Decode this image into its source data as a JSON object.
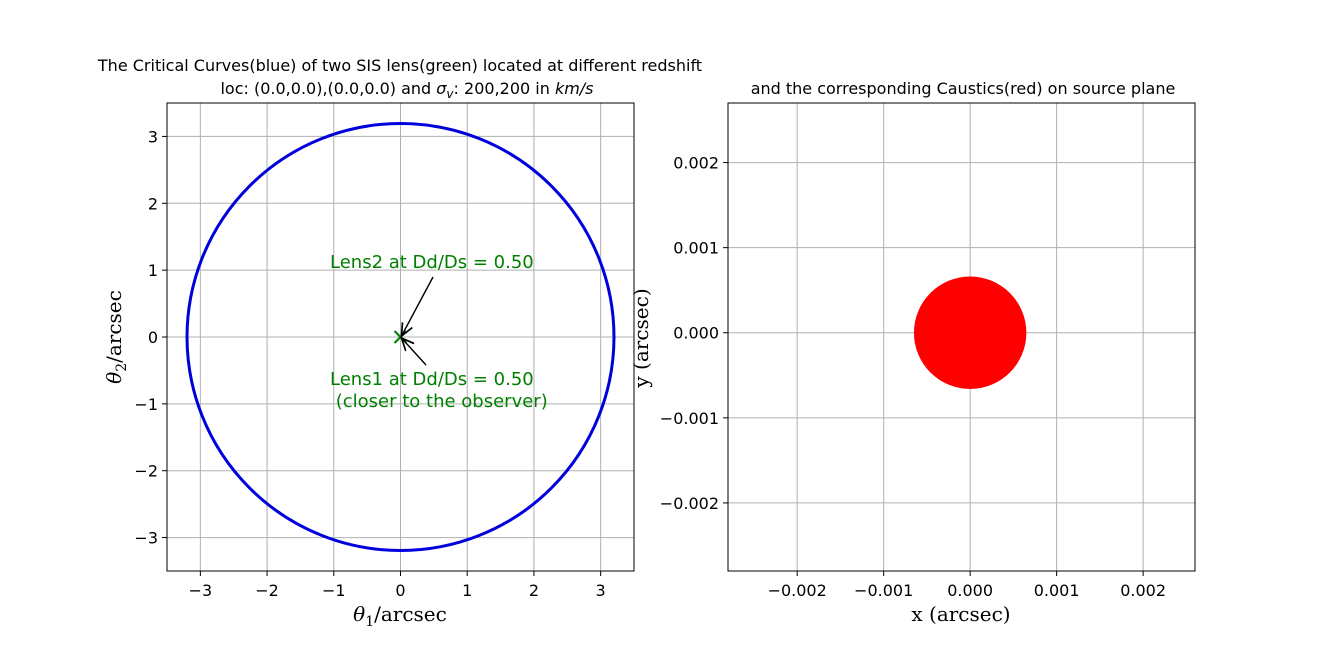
{
  "chart_data": [
    {
      "type": "line",
      "title_line1": "The Critical Curves(blue) of two SIS lens(green) located at different redshift",
      "title_line2_prefix": "loc: (0.0,0.0),(0.0,0.0) and ",
      "title_line2_sigma": "σ",
      "title_line2_sub": "v",
      "title_line2_mid": ": 200,200 in ",
      "title_line2_unit": "km/s",
      "xlabel_theta": "θ",
      "xlabel_sub": "1",
      "xlabel_rest": "/arcsec",
      "ylabel_theta": "θ",
      "ylabel_sub": "2",
      "ylabel_rest": "/arcsec",
      "xlim": [
        -3.5,
        3.5
      ],
      "ylim": [
        -3.5,
        3.5
      ],
      "xticks": [
        -3,
        -2,
        -1,
        0,
        1,
        2,
        3
      ],
      "yticks": [
        -3,
        -2,
        -1,
        0,
        1,
        2,
        3
      ],
      "xtick_labels": [
        "−3",
        "−2",
        "−1",
        "0",
        "1",
        "2",
        "3"
      ],
      "ytick_labels": [
        "−3",
        "−2",
        "−1",
        "0",
        "1",
        "2",
        "3"
      ],
      "grid": true,
      "critical_curve": {
        "center": [
          0.0,
          0.0
        ],
        "radius": 3.2,
        "color": "#0000dd"
      },
      "lens_markers": [
        {
          "x": 0.0,
          "y": 0.0,
          "color": "#008000"
        }
      ],
      "annotations": [
        {
          "text": "Lens2 at Dd/Ds = 0.50",
          "text_at": [
            -1.05,
            1.05
          ],
          "arrow_to": [
            0.0,
            0.0
          ]
        },
        {
          "text": "Lens1 at Dd/Ds = 0.50",
          "text2": " (closer to the observer)",
          "text_at": [
            -1.05,
            -0.75
          ],
          "arrow_to": [
            0.0,
            0.0
          ]
        }
      ]
    },
    {
      "type": "scatter",
      "title": "and the corresponding Caustics(red) on source plane",
      "xlabel": "x (arcsec)",
      "ylabel": "y (arcsec)",
      "xlim": [
        -0.0028,
        0.0026
      ],
      "ylim": [
        -0.0028,
        0.0027
      ],
      "xticks": [
        -0.002,
        -0.001,
        0.0,
        0.001,
        0.002
      ],
      "yticks": [
        -0.002,
        -0.001,
        0.0,
        0.001,
        0.002
      ],
      "xtick_labels": [
        "−0.002",
        "−0.001",
        "0.000",
        "0.001",
        "0.002"
      ],
      "ytick_labels": [
        "−0.002",
        "−0.001",
        "0.000",
        "0.001",
        "0.002"
      ],
      "grid": true,
      "caustic": {
        "center": [
          0.0,
          0.0
        ],
        "radius": 0.00065,
        "color": "#ff0000"
      }
    }
  ]
}
